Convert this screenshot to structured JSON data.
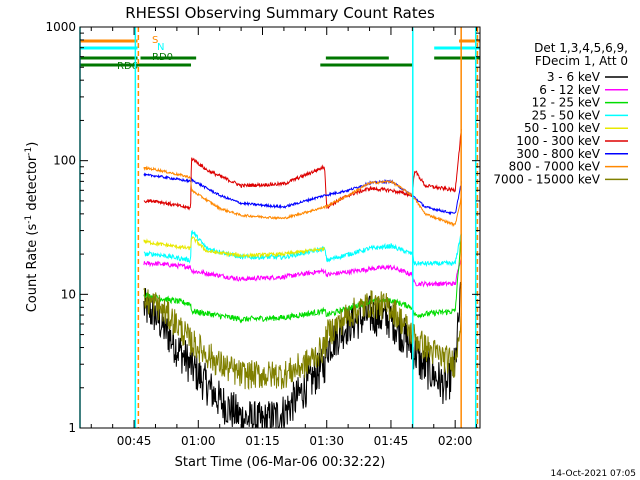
{
  "chart_data": {
    "type": "line",
    "title": "RHESSI Observing Summary Count Rates",
    "xlabel": "Start Time (06-Mar-06 00:32:22)",
    "ylabel_main": "Count Rate (s",
    "ylabel_exp1": "-1",
    "ylabel_mid": " detector",
    "ylabel_exp2": "-1",
    "ylabel_close": ")",
    "y_scale": "log",
    "ylim": [
      1,
      1000
    ],
    "xlim_minutes": [
      32.37,
      125.8
    ],
    "x_ticks": [
      {
        "label": "00:45",
        "minutes": 45
      },
      {
        "label": "01:00",
        "minutes": 60
      },
      {
        "label": "01:15",
        "minutes": 75
      },
      {
        "label": "01:30",
        "minutes": 90
      },
      {
        "label": "01:45",
        "minutes": 105
      },
      {
        "label": "02:00",
        "minutes": 120
      }
    ],
    "y_ticks": [
      {
        "label": "1",
        "value": 1
      },
      {
        "label": "10",
        "value": 10
      },
      {
        "label": "100",
        "value": 100
      },
      {
        "label": "1000",
        "value": 1000
      }
    ],
    "legend": {
      "position": "right",
      "header": [
        "Det 1,3,4,5,6,9,",
        "FDecim 1, Att 0"
      ],
      "entries": [
        {
          "label": "3 - 6 keV",
          "color": "#000000"
        },
        {
          "label": "6 - 12 keV",
          "color": "#ff00ff"
        },
        {
          "label": "12 - 25 keV",
          "color": "#00dd00"
        },
        {
          "label": "25 - 50 keV",
          "color": "#00ffff"
        },
        {
          "label": "50 - 100 keV",
          "color": "#e8e800"
        },
        {
          "label": "100 - 300 keV",
          "color": "#dd0000"
        },
        {
          "label": "300 - 800 keV",
          "color": "#0000ff"
        },
        {
          "label": "800 - 7000 keV",
          "color": "#ff8800"
        },
        {
          "label": "7000 - 15000 keV",
          "color": "#808000"
        }
      ]
    },
    "flags": [
      {
        "label": "S",
        "color": "#ff8800"
      },
      {
        "label": "N",
        "color": "#00ffff"
      },
      {
        "label": "RD0",
        "color": "#007700"
      },
      {
        "label": "RD6",
        "color": "#007700"
      }
    ],
    "flag_intervals": {
      "S": [
        [
          32.37,
          45.8
        ],
        [
          120.9,
          125.8
        ]
      ],
      "N": [
        [
          32.37,
          45.8
        ],
        [
          115.1,
          125.8
        ]
      ],
      "RD0": [
        [
          32.37,
          45.8
        ],
        [
          46.5,
          59.5
        ],
        [
          89.8,
          104.5
        ],
        [
          115.1,
          125.8
        ]
      ],
      "RD6": [
        [
          32.37,
          45.8
        ],
        [
          45.8,
          58.3
        ],
        [
          88.5,
          110.1
        ]
      ]
    },
    "event_lines": [
      {
        "minutes": 32.37,
        "color": "#00ffff",
        "style": "solid"
      },
      {
        "minutes": 45.3,
        "color": "#00ffff",
        "style": "solid"
      },
      {
        "minutes": 46.0,
        "color": "#ff8800",
        "style": "dashed"
      },
      {
        "minutes": 110.1,
        "color": "#00ffff",
        "style": "solid"
      },
      {
        "minutes": 121.4,
        "color": "#ff8800",
        "style": "solid"
      },
      {
        "minutes": 124.8,
        "color": "#00ffff",
        "style": "solid"
      },
      {
        "minutes": 125.2,
        "color": "#ff8800",
        "style": "dashed"
      }
    ],
    "data_start_minutes": 47.3,
    "series": [
      {
        "name": "3 - 6 keV",
        "color": "#000000",
        "noise": 0.35,
        "points": [
          [
            47.3,
            8
          ],
          [
            50,
            7
          ],
          [
            55,
            4
          ],
          [
            58,
            3
          ],
          [
            60,
            2.5
          ],
          [
            65,
            1.6
          ],
          [
            70,
            1.2
          ],
          [
            75,
            1.1
          ],
          [
            80,
            1.3
          ],
          [
            85,
            2
          ],
          [
            89.5,
            3
          ],
          [
            90,
            4
          ],
          [
            95,
            6
          ],
          [
            100,
            7
          ],
          [
            105,
            6.5
          ],
          [
            110,
            4
          ],
          [
            112,
            3
          ],
          [
            115,
            2.5
          ],
          [
            118,
            2
          ],
          [
            120,
            3
          ],
          [
            121.5,
            12
          ]
        ]
      },
      {
        "name": "6 - 12 keV",
        "color": "#ff00ff",
        "noise": 0.04,
        "points": [
          [
            47.3,
            17
          ],
          [
            50,
            17
          ],
          [
            58.2,
            16
          ],
          [
            58.4,
            15
          ],
          [
            70,
            13
          ],
          [
            80,
            13.5
          ],
          [
            89.5,
            15
          ],
          [
            90,
            14
          ],
          [
            100,
            15.5
          ],
          [
            105,
            16
          ],
          [
            110,
            14
          ],
          [
            110.5,
            12
          ],
          [
            120,
            12
          ],
          [
            121.5,
            20
          ]
        ]
      },
      {
        "name": "12 - 25 keV",
        "color": "#00dd00",
        "noise": 0.05,
        "points": [
          [
            47.3,
            10
          ],
          [
            50,
            9.5
          ],
          [
            58.2,
            8.5
          ],
          [
            58.4,
            7.5
          ],
          [
            70,
            6.5
          ],
          [
            80,
            6.7
          ],
          [
            89.5,
            7.5
          ],
          [
            90,
            7
          ],
          [
            100,
            8.8
          ],
          [
            105,
            9
          ],
          [
            110,
            8
          ],
          [
            110.5,
            7
          ],
          [
            120,
            7.5
          ],
          [
            121.5,
            30
          ]
        ]
      },
      {
        "name": "25 - 50 keV",
        "color": "#00ffff",
        "noise": 0.04,
        "points": [
          [
            47.3,
            20
          ],
          [
            50,
            20
          ],
          [
            58.2,
            18
          ],
          [
            58.4,
            30
          ],
          [
            62,
            22
          ],
          [
            70,
            19
          ],
          [
            80,
            19
          ],
          [
            89.5,
            22
          ],
          [
            90,
            18
          ],
          [
            100,
            22
          ],
          [
            105,
            23
          ],
          [
            110,
            20
          ],
          [
            110.5,
            17
          ],
          [
            120,
            17
          ],
          [
            121.5,
            30
          ]
        ]
      },
      {
        "name": "50 - 100 keV",
        "color": "#e8e800",
        "noise": 0.03,
        "points": [
          [
            47.3,
            25
          ],
          [
            50,
            24
          ],
          [
            58.2,
            22
          ],
          [
            58.4,
            27
          ],
          [
            62,
            21
          ],
          [
            70,
            19.5
          ],
          [
            80,
            20
          ],
          [
            89.5,
            22
          ]
        ]
      },
      {
        "name": "100 - 300 keV",
        "color": "#dd0000",
        "noise": 0.03,
        "points": [
          [
            47.3,
            50
          ],
          [
            50,
            50
          ],
          [
            58.2,
            44
          ],
          [
            58.4,
            105
          ],
          [
            62,
            85
          ],
          [
            70,
            65
          ],
          [
            80,
            67
          ],
          [
            89.5,
            90
          ],
          [
            90,
            45
          ],
          [
            95,
            55
          ],
          [
            100,
            62
          ],
          [
            105,
            60
          ],
          [
            110,
            55
          ],
          [
            110.5,
            85
          ],
          [
            113,
            65
          ],
          [
            120,
            60
          ],
          [
            121.5,
            180
          ]
        ]
      },
      {
        "name": "300 - 800 keV",
        "color": "#0000ff",
        "noise": 0.02,
        "points": [
          [
            47.3,
            78
          ],
          [
            50,
            77
          ],
          [
            58.2,
            70
          ],
          [
            58.4,
            72
          ],
          [
            65,
            55
          ],
          [
            70,
            48
          ],
          [
            80,
            45
          ],
          [
            89.5,
            55
          ],
          [
            95,
            60
          ],
          [
            100,
            68
          ],
          [
            105,
            70
          ],
          [
            110,
            55
          ],
          [
            113,
            45
          ],
          [
            120,
            40
          ],
          [
            121.5,
            70
          ]
        ]
      },
      {
        "name": "800 - 7000 keV",
        "color": "#ff8800",
        "noise": 0.02,
        "points": [
          [
            47.3,
            88
          ],
          [
            50,
            86
          ],
          [
            58.2,
            75
          ],
          [
            58.4,
            60
          ],
          [
            65,
            44
          ],
          [
            70,
            39
          ],
          [
            80,
            37
          ],
          [
            89.5,
            45
          ],
          [
            95,
            55
          ],
          [
            100,
            68
          ],
          [
            105,
            70
          ],
          [
            110,
            55
          ],
          [
            113,
            40
          ],
          [
            120,
            33
          ],
          [
            121.5,
            55
          ]
        ]
      },
      {
        "name": "7000 - 15000 keV",
        "color": "#808000",
        "noise": 0.25,
        "points": [
          [
            47.3,
            9
          ],
          [
            50,
            8.5
          ],
          [
            55,
            6
          ],
          [
            58,
            4.5
          ],
          [
            60,
            4
          ],
          [
            65,
            3
          ],
          [
            70,
            2.5
          ],
          [
            80,
            2.5
          ],
          [
            85,
            3
          ],
          [
            89.5,
            4
          ],
          [
            90,
            5
          ],
          [
            95,
            7
          ],
          [
            100,
            8.5
          ],
          [
            105,
            8
          ],
          [
            110,
            5
          ],
          [
            113,
            4
          ],
          [
            120,
            3
          ],
          [
            121.5,
            8
          ]
        ]
      }
    ]
  },
  "footer": {
    "date_stamp": "14-Oct-2021 07:05"
  }
}
